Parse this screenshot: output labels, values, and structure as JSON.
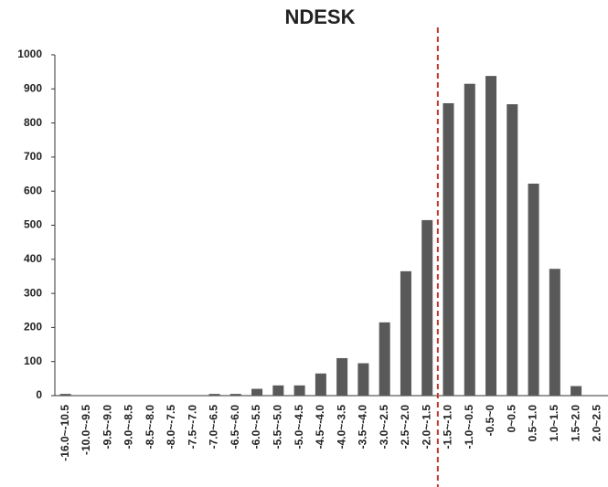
{
  "chart_data": {
    "type": "bar",
    "title": "NDESK",
    "categories": [
      "-16.0~-10.5",
      "-10.0~-9.5",
      "-9.5~-9.0",
      "-9.0~-8.5",
      "-8.5~-8.0",
      "-8.0~-7.5",
      "-7.5~-7.0",
      "-7.0~-6.5",
      "-6.5~-6.0",
      "-6.0~-5.5",
      "-5.5~-5.0",
      "-5.0~-4.5",
      "-4.5~-4.0",
      "-4.0~-3.5",
      "-3.5~-4.0",
      "-3.0~-2.5",
      "-2.5~-2.0",
      "-2.0~-1.5",
      "-1.5~-1.0",
      "-1.0~-0.5",
      "-0.5~0",
      "0~0.5",
      "0.5~1.0",
      "1.0~1.5",
      "1.5~2.0",
      "2.0~2.5"
    ],
    "values": [
      5,
      0,
      0,
      0,
      0,
      0,
      0,
      5,
      5,
      20,
      30,
      30,
      65,
      110,
      95,
      215,
      365,
      515,
      858,
      915,
      938,
      855,
      622,
      372,
      28,
      0
    ],
    "color": "#595959",
    "ylim": [
      0,
      1000
    ],
    "yticks": [
      0,
      100,
      200,
      300,
      400,
      500,
      600,
      700,
      800,
      900,
      1000
    ]
  }
}
